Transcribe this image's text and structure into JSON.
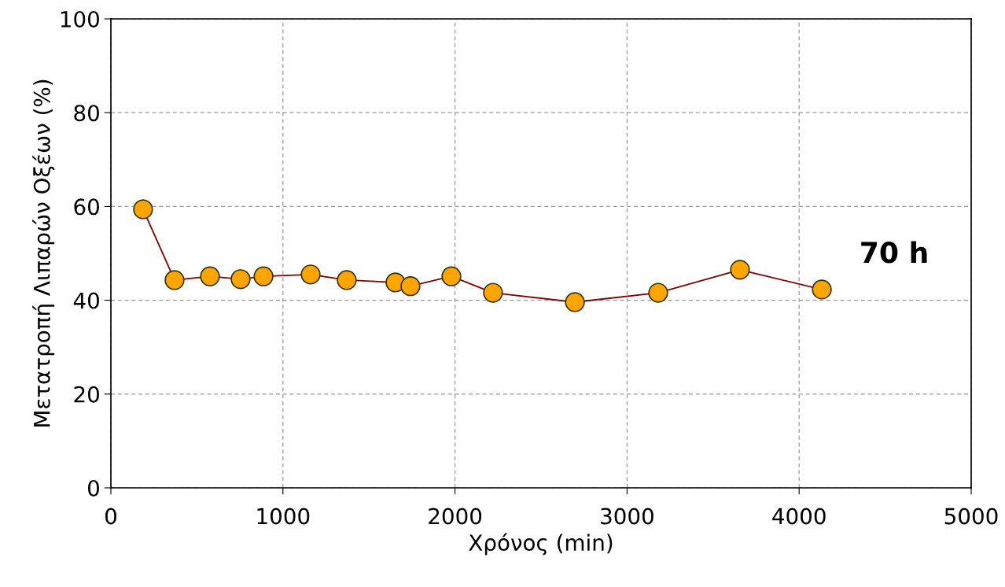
{
  "chart_data": {
    "type": "line",
    "xlabel": "Χρόνος (min)",
    "ylabel": "Μετατροπή Λιπαρών Οξέων (%)",
    "annotations": [
      "70 h"
    ],
    "x": [
      187,
      370,
      576,
      754,
      887,
      1161,
      1371,
      1654,
      1741,
      1979,
      2221,
      2697,
      3181,
      3656,
      4132
    ],
    "series": [
      {
        "color": "#ffa500",
        "values": [
          59.4,
          44.3,
          45.1,
          44.5,
          45.1,
          45.5,
          44.3,
          43.8,
          43.0,
          45.1,
          41.6,
          39.6,
          41.6,
          46.5,
          42.3
        ]
      }
    ],
    "xlim": [
      0,
      5000
    ],
    "xticks": [
      0,
      1000,
      2000,
      3000,
      4000,
      5000
    ],
    "ylim": [
      0,
      100
    ],
    "yticks": [
      0,
      20,
      40,
      60,
      80,
      100
    ],
    "grid": true,
    "marker": "circle",
    "line_style": "solid"
  }
}
